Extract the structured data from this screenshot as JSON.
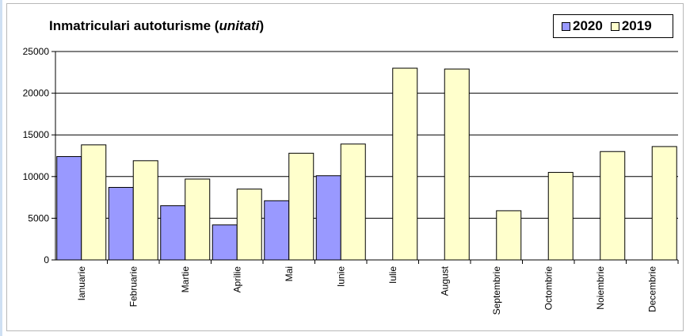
{
  "chart_data": {
    "type": "bar",
    "title": {
      "main": "Inmatriculari autoturisme (",
      "unit": "unitati",
      "close": ")"
    },
    "categories": [
      "Ianuarie",
      "Februarie",
      "Martie",
      "Aprilie",
      "Mai",
      "Iunie",
      "Iulie",
      "August",
      "Septembrie",
      "Octombrie",
      "Noiembrie",
      "Decembrie"
    ],
    "series": [
      {
        "name": "2020",
        "color": "#9999ff",
        "values": [
          12400,
          8700,
          6500,
          4200,
          7100,
          10100,
          null,
          null,
          null,
          null,
          null,
          null
        ]
      },
      {
        "name": "2019",
        "color": "#ffffcc",
        "values": [
          13800,
          11900,
          9700,
          8500,
          12800,
          13900,
          23000,
          22900,
          5900,
          10500,
          13000,
          13600
        ]
      }
    ],
    "ylim": [
      0,
      25000
    ],
    "yticks": [
      "0",
      "5000",
      "10000",
      "15000",
      "20000",
      "25000"
    ],
    "ytick_values": [
      0,
      5000,
      10000,
      15000,
      20000,
      25000
    ],
    "grid": true,
    "legend_position": "top-right"
  }
}
